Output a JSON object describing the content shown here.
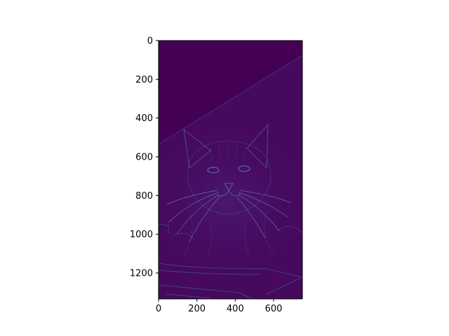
{
  "chart_data": {
    "type": "heatmap",
    "title": "",
    "xlabel": "",
    "ylabel": "",
    "image_width": 750,
    "image_height": 1334,
    "xlim": [
      0,
      750
    ],
    "ylim": [
      1334,
      0
    ],
    "x_ticks": [
      0,
      200,
      400,
      600
    ],
    "y_ticks": [
      0,
      200,
      400,
      600,
      800,
      1000,
      1200
    ],
    "x_tick_labels": [
      "0",
      "200",
      "400",
      "600"
    ],
    "y_tick_labels": [
      "0",
      "200",
      "400",
      "600",
      "800",
      "1000",
      "1200"
    ],
    "colormap": "viridis",
    "grid": false,
    "legend": "none",
    "content": "edge-filtered photo of a cat on a dark purple background",
    "colors": {
      "background_dark": "#440154",
      "background_mid": "#46085c",
      "edge_light": "#3b528b",
      "edge_bright": "#5a78b0"
    }
  }
}
